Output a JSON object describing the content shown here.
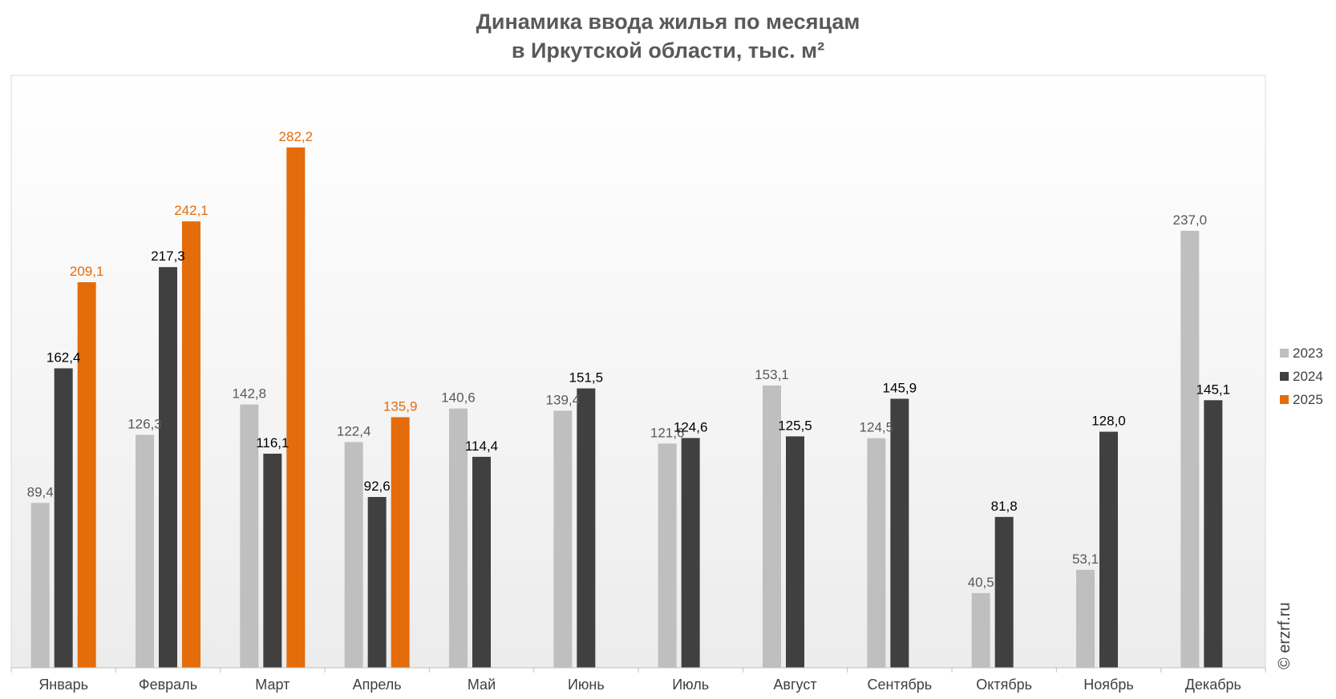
{
  "chart_data": {
    "type": "bar",
    "title_lines": [
      "Динамика ввода жилья по месяцам",
      "в Иркутской области, тыс. м²"
    ],
    "categories": [
      "Январь",
      "Февраль",
      "Март",
      "Апрель",
      "Май",
      "Июнь",
      "Июль",
      "Август",
      "Сентябрь",
      "Октябрь",
      "Ноябрь",
      "Декабрь"
    ],
    "series": [
      {
        "name": "2023",
        "color": "#bfbfbf",
        "label_color": "#595959",
        "values": [
          89.4,
          126.3,
          142.8,
          122.4,
          140.6,
          139.4,
          121.6,
          153.1,
          124.5,
          40.5,
          53.1,
          237.0
        ],
        "labels": [
          "89,4",
          "126,3",
          "142,8",
          "122,4",
          "140,6",
          "139,4",
          "121,6",
          "153,1",
          "124,5",
          "40,5",
          "53,1",
          "237,0"
        ]
      },
      {
        "name": "2024",
        "color": "#404040",
        "label_color": "#000000",
        "values": [
          162.4,
          217.3,
          116.1,
          92.6,
          114.4,
          151.5,
          124.6,
          125.5,
          145.9,
          81.8,
          128.0,
          145.1
        ],
        "labels": [
          "162,4",
          "217,3",
          "116,1",
          "92,6",
          "114,4",
          "151,5",
          "124,6",
          "125,5",
          "145,9",
          "81,8",
          "128,0",
          "145,1"
        ]
      },
      {
        "name": "2025",
        "color": "#e46c0a",
        "label_color": "#e46c0a",
        "values": [
          209.1,
          242.1,
          282.2,
          135.9,
          null,
          null,
          null,
          null,
          null,
          null,
          null,
          null
        ],
        "labels": [
          "209,1",
          "242,1",
          "282,2",
          "135,9",
          "",
          "",
          "",
          "",
          "",
          "",
          "",
          ""
        ]
      }
    ],
    "ylim": [
      0,
      300
    ],
    "legend_position": "right",
    "grid": false,
    "watermark": "© erzrf.ru"
  }
}
